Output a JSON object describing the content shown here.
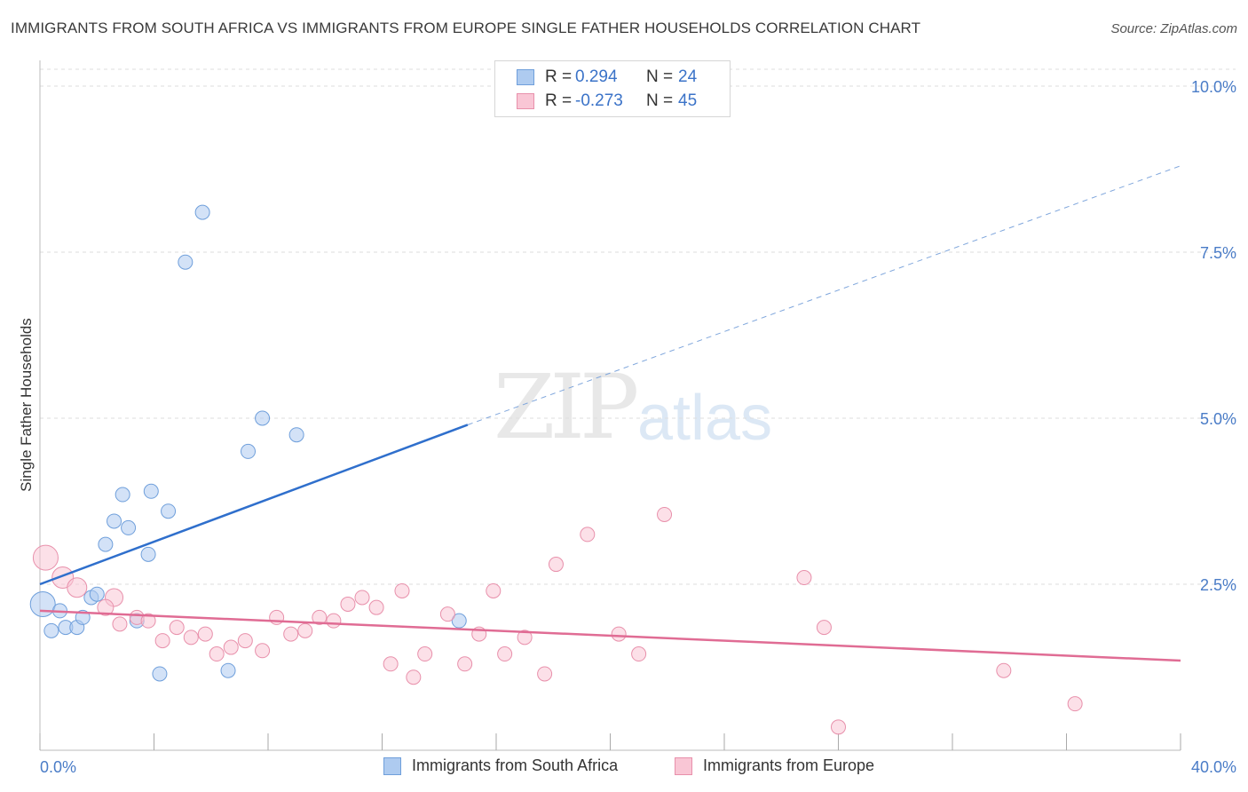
{
  "title": "IMMIGRANTS FROM SOUTH AFRICA VS IMMIGRANTS FROM EUROPE SINGLE FATHER HOUSEHOLDS CORRELATION CHART",
  "source": "Source: ZipAtlas.com",
  "watermark": {
    "zip": "ZIP",
    "atlas": "atlas"
  },
  "legend": {
    "rows": [
      {
        "r_label": "R =",
        "r_value": "0.294",
        "n_label": "N =",
        "n_value": "24",
        "color": "#aecbf0",
        "border": "#6f9fdb"
      },
      {
        "r_label": "R =",
        "r_value": "-0.273",
        "n_label": "N =",
        "n_value": "45",
        "color": "#f9c6d5",
        "border": "#e890ab"
      }
    ]
  },
  "bottom_legend": [
    "Immigrants from South Africa",
    "Immigrants from Europe"
  ],
  "chart_data": {
    "type": "scatter",
    "xlabel": "",
    "ylabel": "Single Father Households",
    "xlim": [
      0,
      40
    ],
    "ylim": [
      0,
      10.5
    ],
    "x_tick_labels": [
      "0.0%",
      "40.0%"
    ],
    "y_ticks": [
      2.5,
      5.0,
      7.5,
      10.0
    ],
    "y_tick_labels": [
      "2.5%",
      "5.0%",
      "7.5%",
      "10.0%"
    ],
    "grid": true,
    "series": [
      {
        "name": "Immigrants from South Africa",
        "color": "#aecbf0",
        "stroke": "#6f9fdb",
        "line_color": "#2f6fcc",
        "trend": {
          "x0": 0,
          "y0": 2.5,
          "x1": 15,
          "y1": 4.9,
          "dash_to_x": 40,
          "dash_to_y": 8.8
        },
        "points": [
          [
            0.1,
            2.2,
            14
          ],
          [
            0.4,
            1.8,
            8
          ],
          [
            0.7,
            2.1,
            8
          ],
          [
            0.9,
            1.85,
            8
          ],
          [
            1.3,
            1.85,
            8
          ],
          [
            1.5,
            2.0,
            8
          ],
          [
            1.8,
            2.3,
            8
          ],
          [
            2.0,
            2.35,
            8
          ],
          [
            2.3,
            3.1,
            8
          ],
          [
            2.6,
            3.45,
            8
          ],
          [
            2.9,
            3.85,
            8
          ],
          [
            3.1,
            3.35,
            8
          ],
          [
            3.4,
            1.95,
            8
          ],
          [
            3.8,
            2.95,
            8
          ],
          [
            3.9,
            3.9,
            8
          ],
          [
            4.2,
            1.15,
            8
          ],
          [
            4.5,
            3.6,
            8
          ],
          [
            5.1,
            7.35,
            8
          ],
          [
            5.7,
            8.1,
            8
          ],
          [
            6.6,
            1.2,
            8
          ],
          [
            7.3,
            4.5,
            8
          ],
          [
            7.8,
            5.0,
            8
          ],
          [
            9.0,
            4.75,
            8
          ],
          [
            14.7,
            1.95,
            8
          ]
        ]
      },
      {
        "name": "Immigrants from Europe",
        "color": "#f9c6d5",
        "stroke": "#e890ab",
        "line_color": "#e06c94",
        "trend": {
          "x0": 0,
          "y0": 2.1,
          "x1": 40,
          "y1": 1.35
        },
        "points": [
          [
            0.2,
            2.9,
            14
          ],
          [
            0.8,
            2.6,
            12
          ],
          [
            1.3,
            2.45,
            11
          ],
          [
            2.6,
            2.3,
            10
          ],
          [
            2.3,
            2.15,
            9
          ],
          [
            2.8,
            1.9,
            8
          ],
          [
            3.4,
            2.0,
            8
          ],
          [
            3.8,
            1.95,
            8
          ],
          [
            4.3,
            1.65,
            8
          ],
          [
            4.8,
            1.85,
            8
          ],
          [
            5.3,
            1.7,
            8
          ],
          [
            5.8,
            1.75,
            8
          ],
          [
            6.2,
            1.45,
            8
          ],
          [
            6.7,
            1.55,
            8
          ],
          [
            7.2,
            1.65,
            8
          ],
          [
            7.8,
            1.5,
            8
          ],
          [
            8.3,
            2.0,
            8
          ],
          [
            8.8,
            1.75,
            8
          ],
          [
            9.3,
            1.8,
            8
          ],
          [
            9.8,
            2.0,
            8
          ],
          [
            10.3,
            1.95,
            8
          ],
          [
            10.8,
            2.2,
            8
          ],
          [
            11.3,
            2.3,
            8
          ],
          [
            11.8,
            2.15,
            8
          ],
          [
            12.3,
            1.3,
            8
          ],
          [
            12.7,
            2.4,
            8
          ],
          [
            13.1,
            1.1,
            8
          ],
          [
            13.5,
            1.45,
            8
          ],
          [
            14.3,
            2.05,
            8
          ],
          [
            14.9,
            1.3,
            8
          ],
          [
            15.4,
            1.75,
            8
          ],
          [
            15.9,
            2.4,
            8
          ],
          [
            16.3,
            1.45,
            8
          ],
          [
            17.0,
            1.7,
            8
          ],
          [
            17.7,
            1.15,
            8
          ],
          [
            18.1,
            2.8,
            8
          ],
          [
            19.2,
            3.25,
            8
          ],
          [
            20.3,
            1.75,
            8
          ],
          [
            21.0,
            1.45,
            8
          ],
          [
            21.9,
            3.55,
            8
          ],
          [
            26.8,
            2.6,
            8
          ],
          [
            27.5,
            1.85,
            8
          ],
          [
            28.0,
            0.35,
            8
          ],
          [
            33.8,
            1.2,
            8
          ],
          [
            36.3,
            0.7,
            8
          ]
        ]
      }
    ]
  }
}
